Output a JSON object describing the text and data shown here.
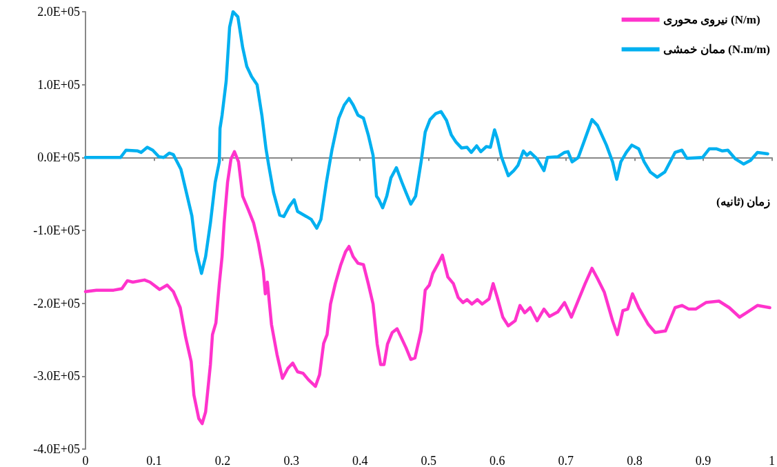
{
  "chart_data": {
    "type": "line",
    "xlabel": "زمان (ثانیه)",
    "xlim": [
      0,
      1
    ],
    "xticks": [
      0,
      0.1,
      0.2,
      0.3,
      0.4,
      0.5,
      0.6,
      0.7,
      0.8,
      0.9,
      1
    ],
    "ylim": [
      -400000,
      200000
    ],
    "yticks": [
      {
        "value": -400000,
        "label": "-4.0E+05"
      },
      {
        "value": -300000,
        "label": "-3.0E+05"
      },
      {
        "value": -200000,
        "label": "-2.0E+05"
      },
      {
        "value": -100000,
        "label": "-1.0E+05"
      },
      {
        "value": 0,
        "label": "0.0E+05"
      },
      {
        "value": 100000,
        "label": "1.0E+05"
      },
      {
        "value": 200000,
        "label": "2.0E+05"
      }
    ],
    "legend": "top right",
    "marker": "none",
    "line_style": "solid",
    "series": [
      {
        "name": "نیروی محوری (N/m)",
        "color": "#ff33cc",
        "x": [
          0,
          0.016,
          0.041,
          0.053,
          0.061,
          0.069,
          0.086,
          0.094,
          0.108,
          0.119,
          0.128,
          0.138,
          0.146,
          0.154,
          0.158,
          0.165,
          0.17,
          0.175,
          0.182,
          0.185,
          0.19,
          0.195,
          0.199,
          0.202,
          0.207,
          0.212,
          0.217,
          0.223,
          0.229,
          0.237,
          0.245,
          0.252,
          0.259,
          0.262,
          0.265,
          0.271,
          0.279,
          0.287,
          0.295,
          0.302,
          0.309,
          0.317,
          0.325,
          0.335,
          0.341,
          0.347,
          0.352,
          0.357,
          0.364,
          0.372,
          0.379,
          0.384,
          0.39,
          0.397,
          0.405,
          0.412,
          0.419,
          0.425,
          0.43,
          0.435,
          0.44,
          0.447,
          0.454,
          0.46,
          0.467,
          0.474,
          0.48,
          0.489,
          0.495,
          0.501,
          0.506,
          0.513,
          0.52,
          0.528,
          0.536,
          0.543,
          0.55,
          0.556,
          0.563,
          0.571,
          0.578,
          0.588,
          0.594,
          0.6,
          0.608,
          0.616,
          0.626,
          0.633,
          0.64,
          0.648,
          0.658,
          0.668,
          0.676,
          0.688,
          0.698,
          0.708,
          0.718,
          0.728,
          0.738,
          0.746,
          0.756,
          0.768,
          0.775,
          0.783,
          0.79,
          0.797,
          0.806,
          0.82,
          0.83,
          0.845,
          0.859,
          0.869,
          0.879,
          0.889,
          0.904,
          0.923,
          0.938,
          0.953,
          0.963,
          0.979,
          0.997
        ],
        "values": [
          -184000,
          -182000,
          -182000,
          -180000,
          -169000,
          -171000,
          -168000,
          -171000,
          -181000,
          -175000,
          -184000,
          -206000,
          -247000,
          -280000,
          -326000,
          -358000,
          -365000,
          -349000,
          -284000,
          -243000,
          -227000,
          -173000,
          -136000,
          -90000,
          -34000,
          -2000,
          8000,
          -6000,
          -53000,
          -71000,
          -90000,
          -118000,
          -155000,
          -187000,
          -171000,
          -229000,
          -270000,
          -303000,
          -289000,
          -282000,
          -294000,
          -296000,
          -305000,
          -314000,
          -298000,
          -255000,
          -243000,
          -201000,
          -173000,
          -147000,
          -129000,
          -122000,
          -136000,
          -145000,
          -147000,
          -173000,
          -201000,
          -256000,
          -284000,
          -284000,
          -256000,
          -240000,
          -235000,
          -247000,
          -261000,
          -277000,
          -275000,
          -238000,
          -182000,
          -175000,
          -159000,
          -147000,
          -134000,
          -164000,
          -173000,
          -192000,
          -199000,
          -195000,
          -201000,
          -195000,
          -201000,
          -194000,
          -173000,
          -192000,
          -219000,
          -231000,
          -224000,
          -203000,
          -213000,
          -206000,
          -224000,
          -208000,
          -218000,
          -212000,
          -199000,
          -219000,
          -196000,
          -173000,
          -152000,
          -166000,
          -185000,
          -224000,
          -243000,
          -210000,
          -208000,
          -187000,
          -206000,
          -229000,
          -240000,
          -238000,
          -206000,
          -203000,
          -208000,
          -208000,
          -199000,
          -197000,
          -206000,
          -219000,
          -213000,
          -203000,
          -206000
        ]
      },
      {
        "name": "ممان خمشی (N.m/m)",
        "color": "#00b0f0",
        "x": [
          0,
          0.051,
          0.059,
          0.076,
          0.081,
          0.09,
          0.098,
          0.107,
          0.114,
          0.122,
          0.128,
          0.139,
          0.155,
          0.161,
          0.169,
          0.175,
          0.182,
          0.189,
          0.195,
          0.196,
          0.199,
          0.205,
          0.21,
          0.215,
          0.222,
          0.229,
          0.235,
          0.242,
          0.25,
          0.257,
          0.263,
          0.267,
          0.274,
          0.283,
          0.289,
          0.297,
          0.304,
          0.309,
          0.322,
          0.329,
          0.337,
          0.343,
          0.351,
          0.359,
          0.369,
          0.377,
          0.384,
          0.39,
          0.397,
          0.405,
          0.412,
          0.419,
          0.424,
          0.427,
          0.433,
          0.439,
          0.445,
          0.453,
          0.461,
          0.467,
          0.474,
          0.481,
          0.489,
          0.495,
          0.502,
          0.51,
          0.518,
          0.526,
          0.533,
          0.54,
          0.548,
          0.556,
          0.562,
          0.57,
          0.576,
          0.584,
          0.59,
          0.596,
          0.6,
          0.606,
          0.616,
          0.624,
          0.63,
          0.638,
          0.643,
          0.648,
          0.658,
          0.668,
          0.673,
          0.688,
          0.698,
          0.703,
          0.709,
          0.718,
          0.728,
          0.738,
          0.746,
          0.759,
          0.768,
          0.774,
          0.78,
          0.788,
          0.796,
          0.806,
          0.814,
          0.823,
          0.833,
          0.844,
          0.859,
          0.869,
          0.876,
          0.899,
          0.909,
          0.919,
          0.928,
          0.936,
          0.947,
          0.959,
          0.969,
          0.979,
          0.994
        ],
        "values": [
          0,
          0,
          10000,
          9000,
          7000,
          14000,
          10000,
          1000,
          0,
          6000,
          4000,
          -16000,
          -80000,
          -127000,
          -159000,
          -136000,
          -90000,
          -34000,
          -6000,
          40000,
          58000,
          105000,
          179000,
          200000,
          193000,
          151000,
          125000,
          111000,
          100000,
          58000,
          12000,
          -11000,
          -48000,
          -79000,
          -81000,
          -67000,
          -58000,
          -74000,
          -81000,
          -85000,
          -97000,
          -85000,
          -34000,
          10000,
          54000,
          72000,
          81000,
          72000,
          58000,
          54000,
          31000,
          3000,
          -53000,
          -57000,
          -69000,
          -53000,
          -28000,
          -14000,
          -34000,
          -48000,
          -64000,
          -53000,
          -6000,
          35000,
          52000,
          60000,
          63000,
          51000,
          31000,
          21000,
          13000,
          14000,
          7000,
          16000,
          8000,
          15000,
          14000,
          38000,
          26000,
          1000,
          -25000,
          -18000,
          -11000,
          9000,
          3000,
          7000,
          -2000,
          -18000,
          0,
          1000,
          7000,
          8000,
          -6000,
          0,
          26000,
          52000,
          44000,
          17000,
          -6000,
          -30000,
          -6000,
          7000,
          17000,
          12000,
          -6000,
          -20000,
          -27000,
          -20000,
          7000,
          10000,
          -1000,
          0,
          12000,
          12000,
          9000,
          10000,
          -2000,
          -9000,
          -4000,
          7000,
          5000
        ]
      }
    ]
  }
}
